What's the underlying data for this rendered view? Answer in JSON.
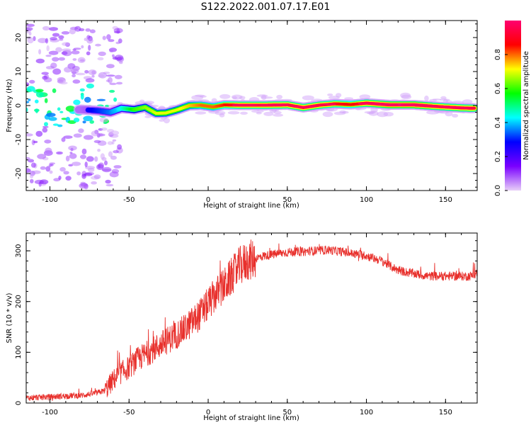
{
  "figure": {
    "title": "S122.2022.001.07.17.E01"
  },
  "chart_data": [
    {
      "type": "heatmap",
      "xlabel": "Height of straight line (km)",
      "ylabel": "Frequency (Hz)",
      "xlim": [
        -115,
        170
      ],
      "ylim": [
        -25,
        25
      ],
      "x_ticks": [
        -100,
        -50,
        0,
        50,
        100,
        150
      ],
      "y_ticks": [
        -20,
        -10,
        0,
        10,
        20
      ],
      "colorbar": {
        "label": "Normalized spectral amplitude",
        "range": [
          0,
          1
        ],
        "ticks": [
          "0.0",
          "0.2",
          "0.4",
          "0.6",
          "0.8"
        ],
        "colors": [
          "#e8cff8",
          "#7a00ff",
          "#0000ff",
          "#00ffff",
          "#00ff00",
          "#ffff00",
          "#ff0000",
          "#ff0070"
        ]
      },
      "ridge": {
        "x": [
          -80,
          -70,
          -62,
          -55,
          -47,
          -40,
          -33,
          -27,
          -20,
          -12,
          -5,
          3,
          10,
          20,
          35,
          50,
          60,
          70,
          80,
          90,
          100,
          115,
          130,
          145,
          160,
          168
        ],
        "y": [
          -1.2,
          -1.5,
          -2,
          -0.8,
          -1.2,
          -0.5,
          -2.3,
          -2.2,
          -1.3,
          0,
          0.1,
          -0.4,
          0.2,
          0.1,
          0.1,
          0.2,
          -0.6,
          0.1,
          0.5,
          0.3,
          0.7,
          0.2,
          0.2,
          -0.3,
          -0.7,
          -0.8
        ],
        "amplitude": [
          0.25,
          0.3,
          0.35,
          0.45,
          0.6,
          0.65,
          0.7,
          0.7,
          0.7,
          0.75,
          0.8,
          0.8,
          0.85,
          0.95,
          0.95,
          0.95,
          0.95,
          0.95,
          0.9,
          0.85,
          0.95,
          1.0,
          1.0,
          0.95,
          0.95,
          0.95
        ]
      }
    },
    {
      "type": "line",
      "xlabel": "Height of straight line (km)",
      "ylabel": "SNR (10 * v/v)",
      "xlim": [
        -115,
        170
      ],
      "ylim": [
        0,
        335
      ],
      "x_ticks": [
        -100,
        -50,
        0,
        50,
        100,
        150
      ],
      "y_ticks": [
        0,
        100,
        200,
        300
      ],
      "series": [
        {
          "color": "#e8302c",
          "x": [
            -115,
            -100,
            -90,
            -80,
            -70,
            -65,
            -60,
            -55,
            -50,
            -45,
            -40,
            -35,
            -30,
            -25,
            -20,
            -15,
            -10,
            -5,
            0,
            5,
            10,
            15,
            20,
            25,
            30,
            35,
            40,
            45,
            50,
            55,
            60,
            65,
            70,
            75,
            80,
            85,
            90,
            95,
            100,
            105,
            110,
            115,
            120,
            125,
            130,
            135,
            140,
            145,
            150,
            155,
            160,
            165,
            170
          ],
          "y": [
            10,
            12,
            14,
            15,
            20,
            25,
            45,
            60,
            70,
            85,
            95,
            105,
            115,
            125,
            135,
            145,
            160,
            175,
            195,
            215,
            230,
            250,
            270,
            280,
            285,
            290,
            292,
            295,
            297,
            298,
            298,
            300,
            300,
            302,
            300,
            298,
            295,
            293,
            290,
            285,
            280,
            270,
            262,
            258,
            255,
            252,
            250,
            250,
            250,
            250,
            250,
            250,
            255
          ]
        }
      ]
    }
  ]
}
